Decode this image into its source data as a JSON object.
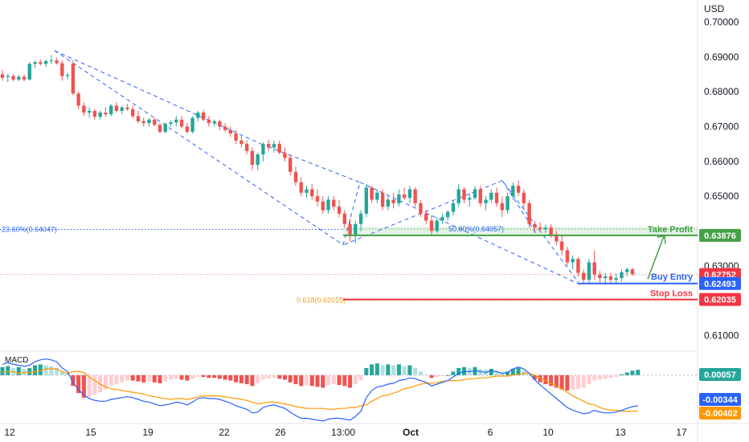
{
  "currency": "USD",
  "colors": {
    "up": "#26a69a",
    "down": "#ef5350",
    "up_hist": "#26a69a",
    "up_hist_light": "#b2dfdb",
    "down_hist": "#ef5350",
    "down_hist_light": "#ffcdd2",
    "macd_line": "#2962ff",
    "signal_line": "#ff9800",
    "take_profit": "#43a047",
    "buy_entry": "#2962ff",
    "stop_loss": "#f23645",
    "fib_blue": "#2962ff",
    "fib_orange": "#f7a21b",
    "fib_green": "#4caf50",
    "current_price": "#f23645"
  },
  "chart_data": [
    {
      "type": "candlestick",
      "title": "",
      "ylabel": "USD",
      "ylim": [
        0.6055,
        0.7045
      ],
      "y_ticks": [
        "0.70000",
        "0.69000",
        "0.68000",
        "0.67000",
        "0.66000",
        "0.65000",
        "0.63000",
        "0.61000"
      ],
      "x_ticks": [
        "12",
        "15",
        "19",
        "22",
        "26",
        "13:00",
        "Oct",
        "6",
        "10",
        "13",
        "17"
      ],
      "levels": [
        {
          "label": "Take Profit",
          "price": "0.63876",
          "color": "#43a047"
        },
        {
          "label": "Buy Entry",
          "price": "0.62493",
          "color": "#2962ff"
        },
        {
          "label": "Stop Loss",
          "price": "0.62035",
          "color": "#f23645"
        }
      ],
      "current_price": "0.62752",
      "fib_labels": [
        {
          "text": "23.60%(0.64047)",
          "price": 0.64047
        },
        {
          "text": "50.00%(0.64057)",
          "price": 0.64057
        },
        {
          "text": "0.618(0.62015)",
          "price": 0.62015
        }
      ],
      "ohlc": [
        [
          0.685,
          0.6862,
          0.6832,
          0.684
        ],
        [
          0.6842,
          0.6852,
          0.6828,
          0.6845
        ],
        [
          0.6845,
          0.685,
          0.683,
          0.6835
        ],
        [
          0.6835,
          0.6848,
          0.683,
          0.6843
        ],
        [
          0.6843,
          0.685,
          0.683,
          0.6835
        ],
        [
          0.6835,
          0.6885,
          0.6832,
          0.688
        ],
        [
          0.688,
          0.689,
          0.6868,
          0.6885
        ],
        [
          0.6885,
          0.6893,
          0.6875,
          0.688
        ],
        [
          0.688,
          0.6893,
          0.6872,
          0.6888
        ],
        [
          0.6888,
          0.6905,
          0.688,
          0.689
        ],
        [
          0.689,
          0.6898,
          0.6878,
          0.6882
        ],
        [
          0.6882,
          0.689,
          0.6832,
          0.6845
        ],
        [
          0.6845,
          0.6855,
          0.6835,
          0.6848
        ],
        [
          0.688,
          0.689,
          0.679,
          0.6795
        ],
        [
          0.6795,
          0.68,
          0.675,
          0.676
        ],
        [
          0.676,
          0.677,
          0.673,
          0.674
        ],
        [
          0.674,
          0.6755,
          0.6725,
          0.6745
        ],
        [
          0.6745,
          0.675,
          0.672,
          0.6728
        ],
        [
          0.6728,
          0.6745,
          0.672,
          0.674
        ],
        [
          0.674,
          0.6755,
          0.6728,
          0.6735
        ],
        [
          0.6735,
          0.6765,
          0.673,
          0.676
        ],
        [
          0.676,
          0.677,
          0.674,
          0.6745
        ],
        [
          0.6745,
          0.676,
          0.6735,
          0.6755
        ],
        [
          0.6755,
          0.6765,
          0.6745,
          0.675
        ],
        [
          0.675,
          0.676,
          0.6725,
          0.673
        ],
        [
          0.673,
          0.6745,
          0.671,
          0.6715
        ],
        [
          0.6715,
          0.6725,
          0.67,
          0.671
        ],
        [
          0.671,
          0.6725,
          0.67,
          0.672
        ],
        [
          0.672,
          0.6725,
          0.67,
          0.6705
        ],
        [
          0.6705,
          0.671,
          0.668,
          0.6685
        ],
        [
          0.6685,
          0.6712,
          0.668,
          0.6708
        ],
        [
          0.6708,
          0.6718,
          0.67,
          0.6712
        ],
        [
          0.6712,
          0.673,
          0.67,
          0.672
        ],
        [
          0.672,
          0.673,
          0.6695,
          0.67
        ],
        [
          0.67,
          0.671,
          0.668,
          0.6685
        ],
        [
          0.6685,
          0.673,
          0.668,
          0.6725
        ],
        [
          0.6725,
          0.6745,
          0.6715,
          0.674
        ],
        [
          0.674,
          0.6748,
          0.6715,
          0.672
        ],
        [
          0.672,
          0.673,
          0.67,
          0.671
        ],
        [
          0.671,
          0.672,
          0.67,
          0.6715
        ],
        [
          0.6715,
          0.672,
          0.669,
          0.67
        ],
        [
          0.67,
          0.671,
          0.6685,
          0.669
        ],
        [
          0.669,
          0.67,
          0.667,
          0.668
        ],
        [
          0.668,
          0.669,
          0.665,
          0.666
        ],
        [
          0.666,
          0.6672,
          0.664,
          0.665
        ],
        [
          0.665,
          0.666,
          0.662,
          0.663
        ],
        [
          0.663,
          0.664,
          0.6575,
          0.659
        ],
        [
          0.659,
          0.6625,
          0.6575,
          0.662
        ],
        [
          0.662,
          0.6655,
          0.66,
          0.665
        ],
        [
          0.665,
          0.6662,
          0.663,
          0.664
        ],
        [
          0.664,
          0.666,
          0.6625,
          0.665
        ],
        [
          0.665,
          0.666,
          0.662,
          0.6625
        ],
        [
          0.6625,
          0.664,
          0.66,
          0.661
        ],
        [
          0.661,
          0.662,
          0.656,
          0.657
        ],
        [
          0.657,
          0.6585,
          0.653,
          0.654
        ],
        [
          0.654,
          0.6555,
          0.65,
          0.651
        ],
        [
          0.651,
          0.653,
          0.6495,
          0.652
        ],
        [
          0.652,
          0.6535,
          0.649,
          0.65
        ],
        [
          0.65,
          0.652,
          0.647,
          0.6485
        ],
        [
          0.6485,
          0.65,
          0.645,
          0.646
        ],
        [
          0.646,
          0.65,
          0.645,
          0.649
        ],
        [
          0.649,
          0.65,
          0.646,
          0.647
        ],
        [
          0.647,
          0.649,
          0.644,
          0.645
        ],
        [
          0.645,
          0.646,
          0.641,
          0.642
        ],
        [
          0.642,
          0.6435,
          0.637,
          0.639
        ],
        [
          0.639,
          0.643,
          0.6365,
          0.642
        ],
        [
          0.642,
          0.646,
          0.64,
          0.645
        ],
        [
          0.645,
          0.6535,
          0.644,
          0.6525
        ],
        [
          0.6525,
          0.653,
          0.648,
          0.649
        ],
        [
          0.649,
          0.652,
          0.648,
          0.651
        ],
        [
          0.651,
          0.652,
          0.646,
          0.647
        ],
        [
          0.647,
          0.65,
          0.646,
          0.649
        ],
        [
          0.649,
          0.651,
          0.6465,
          0.648
        ],
        [
          0.648,
          0.652,
          0.647,
          0.6505
        ],
        [
          0.6505,
          0.6525,
          0.649,
          0.6495
        ],
        [
          0.6495,
          0.653,
          0.648,
          0.652
        ],
        [
          0.652,
          0.6525,
          0.647,
          0.648
        ],
        [
          0.648,
          0.649,
          0.644,
          0.645
        ],
        [
          0.645,
          0.646,
          0.642,
          0.643
        ],
        [
          0.643,
          0.6445,
          0.639,
          0.64
        ],
        [
          0.64,
          0.644,
          0.6395,
          0.643
        ],
        [
          0.643,
          0.645,
          0.642,
          0.644
        ],
        [
          0.644,
          0.646,
          0.643,
          0.6455
        ],
        [
          0.6455,
          0.649,
          0.6445,
          0.648
        ],
        [
          0.648,
          0.6535,
          0.647,
          0.652
        ],
        [
          0.652,
          0.6525,
          0.648,
          0.649
        ],
        [
          0.649,
          0.651,
          0.647,
          0.6495
        ],
        [
          0.6495,
          0.653,
          0.649,
          0.652
        ],
        [
          0.652,
          0.653,
          0.647,
          0.648
        ],
        [
          0.648,
          0.65,
          0.646,
          0.649
        ],
        [
          0.649,
          0.652,
          0.648,
          0.651
        ],
        [
          0.651,
          0.6525,
          0.647,
          0.648
        ],
        [
          0.648,
          0.65,
          0.644,
          0.646
        ],
        [
          0.646,
          0.651,
          0.645,
          0.65
        ],
        [
          0.65,
          0.654,
          0.649,
          0.653
        ],
        [
          0.653,
          0.6545,
          0.65,
          0.651
        ],
        [
          0.651,
          0.652,
          0.646,
          0.648
        ],
        [
          0.648,
          0.649,
          0.641,
          0.642
        ],
        [
          0.642,
          0.643,
          0.6395,
          0.641
        ],
        [
          0.641,
          0.6425,
          0.64,
          0.6405
        ],
        [
          0.6405,
          0.6418,
          0.6395,
          0.641
        ],
        [
          0.641,
          0.642,
          0.638,
          0.639
        ],
        [
          0.639,
          0.64,
          0.636,
          0.637
        ],
        [
          0.637,
          0.6385,
          0.633,
          0.6345
        ],
        [
          0.6345,
          0.6355,
          0.63,
          0.631
        ],
        [
          0.631,
          0.633,
          0.629,
          0.632
        ],
        [
          0.632,
          0.6325,
          0.627,
          0.628
        ],
        [
          0.628,
          0.629,
          0.625,
          0.626
        ],
        [
          0.626,
          0.632,
          0.625,
          0.631
        ],
        [
          0.631,
          0.6345,
          0.626,
          0.6275
        ],
        [
          0.6275,
          0.6285,
          0.625,
          0.6265
        ],
        [
          0.6265,
          0.628,
          0.6245,
          0.627
        ],
        [
          0.627,
          0.628,
          0.625,
          0.626
        ],
        [
          0.626,
          0.6278,
          0.625,
          0.6265
        ],
        [
          0.6265,
          0.629,
          0.6255,
          0.6282
        ],
        [
          0.6282,
          0.6295,
          0.627,
          0.629
        ],
        [
          0.629,
          0.6295,
          0.6272,
          0.6276
        ]
      ]
    },
    {
      "type": "macd",
      "title": "MACD",
      "ylim": [
        -0.0052,
        0.0024
      ],
      "values_labels": [
        "0.00057",
        "-0.00344",
        "-0.00402"
      ],
      "histogram": [
        0.0009,
        0.001,
        0.0008,
        0.0009,
        0.0007,
        0.0008,
        0.0011,
        0.0012,
        0.0011,
        0.001,
        0.0008,
        0.0004,
        0.0002,
        -0.0012,
        -0.002,
        -0.0025,
        -0.0024,
        -0.0022,
        -0.0019,
        -0.0016,
        -0.0012,
        -0.001,
        -0.0008,
        -0.0006,
        -0.0006,
        -0.0007,
        -0.0008,
        -0.0007,
        -0.0008,
        -0.0009,
        -0.0007,
        -0.0005,
        -0.0004,
        -0.0005,
        -0.0006,
        -0.0004,
        -0.0002,
        -0.0002,
        -0.0003,
        -0.0003,
        -0.0004,
        -0.0005,
        -0.0006,
        -0.0008,
        -0.0009,
        -0.001,
        -0.0012,
        -0.0009,
        -0.0005,
        -0.0004,
        -0.0003,
        -0.0004,
        -0.0005,
        -0.0008,
        -0.001,
        -0.0012,
        -0.0011,
        -0.0012,
        -0.0013,
        -0.0014,
        -0.0011,
        -0.001,
        -0.0011,
        -0.0012,
        -0.0014,
        -0.001,
        -0.0006,
        0.0008,
        0.0012,
        0.0013,
        0.0011,
        0.0012,
        0.0011,
        0.0012,
        0.001,
        0.0011,
        0.0008,
        0.0004,
        0.0001,
        -0.0003,
        -0.0002,
        -0.0001,
        0.0,
        0.0004,
        0.0008,
        0.0009,
        0.0008,
        0.0009,
        0.0007,
        0.0006,
        0.0007,
        0.0005,
        0.0003,
        0.0004,
        0.0007,
        0.0008,
        0.0005,
        0.0,
        -0.0005,
        -0.0008,
        -0.001,
        -0.0012,
        -0.0014,
        -0.0016,
        -0.0017,
        -0.0016,
        -0.0015,
        -0.0014,
        -0.001,
        -0.0006,
        -0.0005,
        -0.0004,
        -0.0003,
        -0.0002,
        0.0001,
        0.0003,
        0.0005,
        0.0006
      ],
      "macd": [
        0.0012,
        0.0014,
        0.0012,
        0.0011,
        0.001,
        0.0011,
        0.0015,
        0.0017,
        0.0018,
        0.0017,
        0.0015,
        0.0008,
        0.0004,
        -0.0008,
        -0.0016,
        -0.0022,
        -0.0026,
        -0.0028,
        -0.0029,
        -0.0029,
        -0.0027,
        -0.0026,
        -0.0025,
        -0.0024,
        -0.0025,
        -0.0027,
        -0.0029,
        -0.003,
        -0.0032,
        -0.0034,
        -0.0033,
        -0.0032,
        -0.003,
        -0.0031,
        -0.0033,
        -0.003,
        -0.0026,
        -0.0025,
        -0.0026,
        -0.0026,
        -0.0027,
        -0.0029,
        -0.0031,
        -0.0034,
        -0.0036,
        -0.0038,
        -0.0042,
        -0.0041,
        -0.0036,
        -0.0034,
        -0.0033,
        -0.0035,
        -0.0037,
        -0.0041,
        -0.0045,
        -0.0048,
        -0.0048,
        -0.0049,
        -0.005,
        -0.0051,
        -0.0049,
        -0.0048,
        -0.0048,
        -0.0049,
        -0.005,
        -0.0046,
        -0.004,
        -0.0025,
        -0.0017,
        -0.0013,
        -0.0012,
        -0.001,
        -0.0009,
        -0.0006,
        -0.0005,
        -0.0003,
        -0.0004,
        -0.0006,
        -0.0008,
        -0.0012,
        -0.001,
        -0.0008,
        -0.0006,
        -0.0002,
        0.0002,
        0.0004,
        0.0004,
        0.0005,
        0.0004,
        0.0003,
        0.0005,
        0.0004,
        0.0002,
        0.0003,
        0.0007,
        0.0009,
        0.0007,
        0.0002,
        -0.0005,
        -0.0011,
        -0.0016,
        -0.0021,
        -0.0026,
        -0.0031,
        -0.0036,
        -0.0039,
        -0.0041,
        -0.0043,
        -0.0042,
        -0.0039,
        -0.0041,
        -0.0042,
        -0.0042,
        -0.0041,
        -0.0039,
        -0.0037,
        -0.0035,
        -0.0034
      ],
      "signal": [
        0.0003,
        0.0004,
        0.0004,
        0.0002,
        0.0003,
        0.0003,
        0.0004,
        0.0005,
        0.0007,
        0.0007,
        0.0007,
        0.0004,
        0.0002,
        0.0004,
        0.0004,
        0.0003,
        -0.0002,
        -0.0006,
        -0.001,
        -0.0013,
        -0.0015,
        -0.0016,
        -0.0017,
        -0.0018,
        -0.0019,
        -0.002,
        -0.0021,
        -0.0023,
        -0.0024,
        -0.0025,
        -0.0026,
        -0.0027,
        -0.0026,
        -0.0026,
        -0.0027,
        -0.0026,
        -0.0024,
        -0.0023,
        -0.0023,
        -0.0023,
        -0.0023,
        -0.0024,
        -0.0025,
        -0.0026,
        -0.0027,
        -0.0028,
        -0.003,
        -0.0032,
        -0.0031,
        -0.003,
        -0.003,
        -0.0031,
        -0.0032,
        -0.0033,
        -0.0035,
        -0.0036,
        -0.0037,
        -0.0037,
        -0.0037,
        -0.0037,
        -0.0038,
        -0.0038,
        -0.0037,
        -0.0037,
        -0.0036,
        -0.0036,
        -0.0034,
        -0.0033,
        -0.0029,
        -0.0026,
        -0.0023,
        -0.0022,
        -0.002,
        -0.0018,
        -0.0015,
        -0.0014,
        -0.0012,
        -0.001,
        -0.0009,
        -0.0009,
        -0.0008,
        -0.0007,
        -0.0006,
        -0.0006,
        -0.0006,
        -0.0005,
        -0.0004,
        -0.0004,
        -0.0003,
        -0.0003,
        -0.0002,
        -0.0001,
        -0.0001,
        -0.0001,
        0.0,
        0.0001,
        0.0002,
        0.0002,
        0.0,
        -0.0003,
        -0.0006,
        -0.0009,
        -0.0012,
        -0.0015,
        -0.0019,
        -0.0023,
        -0.0026,
        -0.0029,
        -0.0032,
        -0.0033,
        -0.0036,
        -0.0038,
        -0.0039,
        -0.0039,
        -0.004,
        -0.004,
        -0.004,
        -0.004
      ]
    }
  ]
}
